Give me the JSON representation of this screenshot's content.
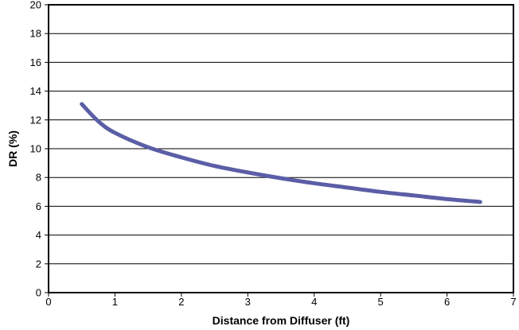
{
  "chart_data": {
    "type": "line",
    "title": "",
    "xlabel": "Distance from Diffuser (ft)",
    "ylabel": "DR (%)",
    "xlim": [
      0,
      7
    ],
    "ylim": [
      0,
      20
    ],
    "x_ticks": [
      "0",
      "1",
      "2",
      "3",
      "4",
      "5",
      "6",
      "7"
    ],
    "y_ticks": [
      "0",
      "2",
      "4",
      "6",
      "8",
      "10",
      "12",
      "14",
      "16",
      "18",
      "20"
    ],
    "grid": "horizontal",
    "legend": "none",
    "series": [
      {
        "color": "#5b5ea6",
        "x": [
          0.5,
          0.75,
          1.0,
          1.5,
          2.0,
          2.5,
          3.0,
          3.5,
          4.0,
          4.5,
          5.0,
          5.5,
          6.0,
          6.5
        ],
        "y": [
          13.1,
          11.9,
          11.1,
          10.1,
          9.4,
          8.8,
          8.35,
          7.95,
          7.6,
          7.3,
          7.0,
          6.75,
          6.5,
          6.3
        ]
      }
    ]
  }
}
